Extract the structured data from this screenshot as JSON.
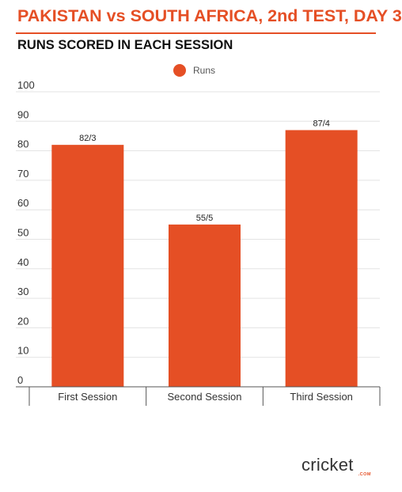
{
  "header": {
    "title": "PAKISTAN vs SOUTH AFRICA, 2nd TEST, DAY 3",
    "subtitle": "RUNS SCORED IN EACH SESSION"
  },
  "brand": {
    "logo_text": "cricket",
    "logo_suffix": ".COM"
  },
  "colors": {
    "accent": "#e54f25",
    "bar": "#e54f25"
  },
  "chart_data": {
    "type": "bar",
    "categories": [
      "First Session",
      "Second Session",
      "Third Session"
    ],
    "series": [
      {
        "name": "Runs",
        "values": [
          82,
          55,
          87
        ],
        "labels": [
          "82/3",
          "55/5",
          "87/4"
        ]
      }
    ],
    "ylim": [
      0,
      100
    ],
    "yticks": [
      0,
      10,
      20,
      30,
      40,
      50,
      60,
      70,
      80,
      90,
      100
    ],
    "xlabel": "",
    "ylabel": "",
    "grid": true,
    "legend_position": "top-center"
  }
}
